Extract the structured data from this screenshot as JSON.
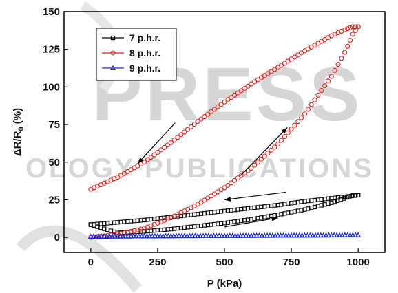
{
  "watermark": {
    "line1": "PRESS",
    "line2": "OLOGY PUBLICATIONS"
  },
  "chart_data": {
    "type": "scatter",
    "xlabel": "P (kPa)",
    "ylabel_main": "ΔR/R",
    "ylabel_sub": "0",
    "ylabel_unit": " (%)",
    "xlim": [
      -100,
      1100
    ],
    "ylim": [
      -10,
      150
    ],
    "xticks": [
      0,
      250,
      500,
      750,
      1000
    ],
    "yticks": [
      0,
      25,
      50,
      75,
      100,
      125,
      150
    ],
    "legend_position": "top-left",
    "series": [
      {
        "name": "7 p.h.r.",
        "marker": "square",
        "color": "#000000",
        "loading": [
          [
            0,
            8.5
          ],
          [
            100,
            3
          ],
          [
            200,
            4
          ],
          [
            300,
            5.5
          ],
          [
            400,
            7.5
          ],
          [
            500,
            9.5
          ],
          [
            600,
            12
          ],
          [
            700,
            15
          ],
          [
            800,
            18.5
          ],
          [
            900,
            23
          ],
          [
            980,
            28
          ],
          [
            1000,
            28
          ]
        ],
        "unloading": [
          [
            1000,
            28
          ],
          [
            900,
            26
          ],
          [
            800,
            24
          ],
          [
            700,
            21.5
          ],
          [
            600,
            19.5
          ],
          [
            500,
            17.5
          ],
          [
            400,
            15.5
          ],
          [
            300,
            13.5
          ],
          [
            200,
            11.5
          ],
          [
            100,
            10
          ],
          [
            0,
            8.5
          ]
        ]
      },
      {
        "name": "8 p.h.r.",
        "marker": "circle",
        "color": "#e0201b",
        "loading": [
          [
            0,
            0
          ],
          [
            100,
            2
          ],
          [
            200,
            6
          ],
          [
            300,
            13
          ],
          [
            400,
            22
          ],
          [
            500,
            33
          ],
          [
            600,
            46
          ],
          [
            700,
            62
          ],
          [
            800,
            82
          ],
          [
            900,
            107
          ],
          [
            950,
            123
          ],
          [
            980,
            135
          ],
          [
            1000,
            140
          ]
        ],
        "unloading": [
          [
            1000,
            140
          ],
          [
            980,
            140
          ],
          [
            950,
            138
          ],
          [
            900,
            134
          ],
          [
            800,
            124
          ],
          [
            700,
            113
          ],
          [
            600,
            102
          ],
          [
            500,
            90
          ],
          [
            400,
            77
          ],
          [
            300,
            63
          ],
          [
            200,
            50
          ],
          [
            100,
            40
          ],
          [
            0,
            32
          ]
        ]
      },
      {
        "name": "9 p.h.r.",
        "marker": "triangle",
        "color": "#1a2bd6",
        "loading": [
          [
            0,
            0.5
          ],
          [
            250,
            0.8
          ],
          [
            500,
            1.0
          ],
          [
            750,
            1.2
          ],
          [
            1000,
            1.5
          ]
        ],
        "unloading": [
          [
            1000,
            1.5
          ],
          [
            750,
            1.3
          ],
          [
            500,
            1.1
          ],
          [
            250,
            0.9
          ],
          [
            0,
            0.6
          ]
        ]
      }
    ],
    "annotations": [
      {
        "type": "arrow",
        "from": [
          315,
          76
        ],
        "to": [
          175,
          49
        ]
      },
      {
        "type": "arrow",
        "from": [
          560,
          41
        ],
        "to": [
          735,
          73
        ]
      },
      {
        "type": "arrow",
        "from": [
          730,
          30
        ],
        "to": [
          500,
          25
        ]
      },
      {
        "type": "arrow",
        "from": [
          500,
          7
        ],
        "to": [
          700,
          13
        ]
      }
    ]
  }
}
